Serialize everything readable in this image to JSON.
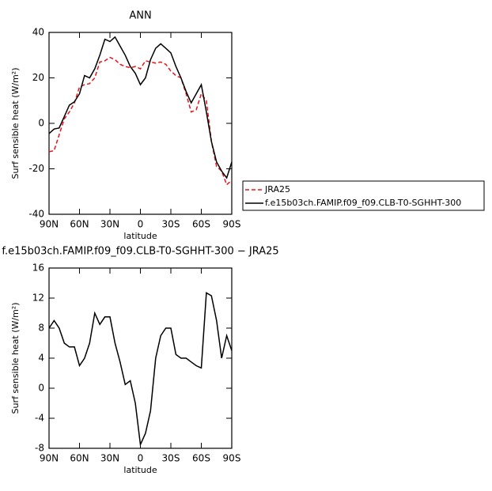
{
  "chart_data": [
    {
      "type": "line",
      "title": "ANN",
      "x_label": "latitude",
      "y_label": "Surf sensible heat (W/m²)",
      "x": [
        90,
        85,
        80,
        75,
        70,
        65,
        60,
        55,
        50,
        45,
        40,
        35,
        30,
        25,
        20,
        15,
        10,
        5,
        0,
        -5,
        -10,
        -15,
        -20,
        -25,
        -30,
        -35,
        -40,
        -45,
        -50,
        -55,
        -60,
        -65,
        -70,
        -75,
        -80,
        -85,
        -90
      ],
      "xlim": [
        90,
        -90
      ],
      "xticks": [
        {
          "value": 90,
          "label": "90N"
        },
        {
          "value": 60,
          "label": "60N"
        },
        {
          "value": 30,
          "label": "30N"
        },
        0,
        {
          "value": -30,
          "label": "30S"
        },
        {
          "value": -60,
          "label": "60S"
        },
        {
          "value": -90,
          "label": "90S"
        }
      ],
      "ylim": [
        -40,
        40
      ],
      "yticks": [
        -40,
        -20,
        0,
        20,
        40
      ],
      "legend": "right",
      "series": [
        {
          "name": "JRA25",
          "color": "#e8141b",
          "dashed": true,
          "values": [
            -12.5,
            -12,
            -5,
            2,
            5,
            9,
            16,
            17,
            17.5,
            20,
            27,
            27.5,
            29,
            28,
            26,
            25,
            24.5,
            25,
            24,
            27.5,
            27,
            26.5,
            27,
            26,
            23,
            21,
            20,
            13,
            5,
            6,
            13,
            10,
            -8,
            -19,
            -21,
            -27,
            -25
          ]
        },
        {
          "name": "f.e15b03ch.FAMIP.f09_f09.CLB-T0-SGHHT-300",
          "color": "#000000",
          "dashed": false,
          "values": [
            -4.5,
            -2.5,
            -2,
            3,
            8,
            9.5,
            13,
            21,
            20,
            24,
            30,
            37,
            36,
            38,
            34,
            30,
            25,
            22,
            17,
            20,
            28,
            33,
            35,
            33,
            31,
            25,
            20,
            14,
            9,
            13,
            17,
            5,
            -8,
            -17,
            -21,
            -24,
            -17
          ]
        }
      ]
    },
    {
      "type": "line",
      "title": "f.e15b03ch.FAMIP.f09_f09.CLB-T0-SGHHT-300 − JRA25",
      "x_label": "latitude",
      "y_label": "Surf sensible heat (W/m²)",
      "x": [
        90,
        85,
        80,
        75,
        70,
        65,
        60,
        55,
        50,
        45,
        40,
        35,
        30,
        25,
        20,
        15,
        10,
        5,
        0,
        -5,
        -10,
        -15,
        -20,
        -25,
        -30,
        -35,
        -40,
        -45,
        -50,
        -55,
        -60,
        -65,
        -70,
        -75,
        -80,
        -85,
        -90
      ],
      "xlim": [
        90,
        -90
      ],
      "xticks": [
        {
          "value": 90,
          "label": "90N"
        },
        {
          "value": 60,
          "label": "60N"
        },
        {
          "value": 30,
          "label": "30N"
        },
        0,
        {
          "value": -30,
          "label": "30S"
        },
        {
          "value": -60,
          "label": "60S"
        },
        {
          "value": -90,
          "label": "90S"
        }
      ],
      "ylim": [
        -8,
        16
      ],
      "yticks": [
        -8,
        -4,
        0,
        4,
        8,
        12,
        16
      ],
      "color": "#000000",
      "values": [
        8,
        9,
        8,
        6,
        5.5,
        5.5,
        3,
        4,
        6,
        10,
        8.5,
        9.5,
        9.5,
        6,
        3.5,
        0.5,
        1,
        -2,
        -7.5,
        -6,
        -3,
        4,
        7,
        8,
        8,
        4.5,
        4,
        4,
        3.5,
        3,
        2.7,
        12.7,
        12.3,
        9,
        4,
        7,
        5
      ]
    }
  ]
}
